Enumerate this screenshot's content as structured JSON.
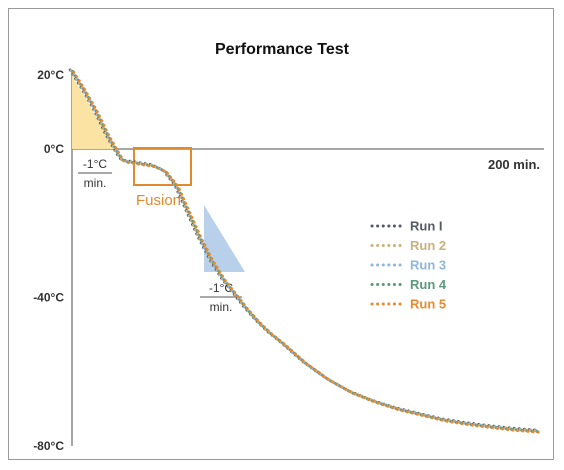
{
  "chart_data": {
    "type": "line",
    "title": "Performance Test",
    "x_unit": "min",
    "xlim": [
      0,
      200
    ],
    "ylim": [
      -80,
      20
    ],
    "y_ticks": [
      {
        "value": 20,
        "label": "20°C"
      },
      {
        "value": 0,
        "label": "0°C"
      },
      {
        "value": -40,
        "label": "-40°C"
      },
      {
        "value": -80,
        "label": "-80°C"
      }
    ],
    "x_end_label": "200 min.",
    "x": [
      0,
      5,
      10,
      15,
      20,
      22,
      25,
      30,
      35,
      40,
      45,
      50,
      55,
      60,
      65,
      70,
      75,
      80,
      85,
      90,
      100,
      110,
      120,
      130,
      140,
      150,
      160,
      170,
      180,
      190,
      200
    ],
    "series": [
      {
        "name": "Run I",
        "color": "#555a66",
        "values": [
          21,
          16,
          10.5,
          4,
          -1.5,
          -3.2,
          -3.5,
          -4,
          -4.5,
          -6,
          -10,
          -17,
          -24,
          -30,
          -35,
          -39,
          -43,
          -46.5,
          -49.5,
          -52,
          -57.5,
          -62,
          -65.5,
          -68,
          -70,
          -71.5,
          -73,
          -74,
          -74.8,
          -75.5,
          -76
        ]
      },
      {
        "name": "Run 2",
        "color": "#c9b27c",
        "values": [
          21,
          16,
          10.5,
          4,
          -1.5,
          -3.2,
          -3.5,
          -4,
          -4.5,
          -6,
          -10,
          -17,
          -24,
          -30,
          -35,
          -39,
          -43,
          -46.5,
          -49.5,
          -52,
          -57.5,
          -62,
          -65.5,
          -68,
          -70,
          -71.5,
          -73,
          -74,
          -74.8,
          -75.5,
          -76
        ]
      },
      {
        "name": "Run 3",
        "color": "#8fb6dc",
        "values": [
          21,
          16,
          10.5,
          4,
          -1.5,
          -3.2,
          -3.5,
          -4,
          -4.5,
          -6,
          -10,
          -17,
          -24,
          -30,
          -35,
          -39,
          -43,
          -46.5,
          -49.5,
          -52,
          -57.5,
          -62,
          -65.5,
          -68,
          -70,
          -71.5,
          -73,
          -74,
          -74.8,
          -75.5,
          -76
        ]
      },
      {
        "name": "Run 4",
        "color": "#5c9a7e",
        "values": [
          21,
          16,
          10.5,
          4,
          -1.5,
          -3.2,
          -3.5,
          -4,
          -4.5,
          -6,
          -10,
          -17,
          -24,
          -30,
          -35,
          -39,
          -43,
          -46.5,
          -49.5,
          -52,
          -57.5,
          -62,
          -65.5,
          -68,
          -70,
          -71.5,
          -73,
          -74,
          -74.8,
          -75.5,
          -76
        ]
      },
      {
        "name": "Run 5",
        "color": "#e88a2c",
        "values": [
          21,
          16,
          10.5,
          4,
          -1.5,
          -3.2,
          -3.5,
          -4,
          -4.5,
          -6,
          -10,
          -17,
          -24,
          -30,
          -35,
          -39,
          -43,
          -46.5,
          -49.5,
          -52,
          -57.5,
          -62,
          -65.5,
          -68,
          -70,
          -71.5,
          -73,
          -74,
          -74.8,
          -75.5,
          -76
        ]
      }
    ],
    "annotations": {
      "rate1": {
        "top": "-1°C",
        "bottom": "min.",
        "color": "#fbe3a4"
      },
      "rate2": {
        "top": "-1°C",
        "bottom": "min.",
        "color": "#b9d0ea"
      },
      "fusion": {
        "label": "Fusion",
        "color": "#e08a2c"
      }
    },
    "legend_position": "right",
    "grid": false
  }
}
